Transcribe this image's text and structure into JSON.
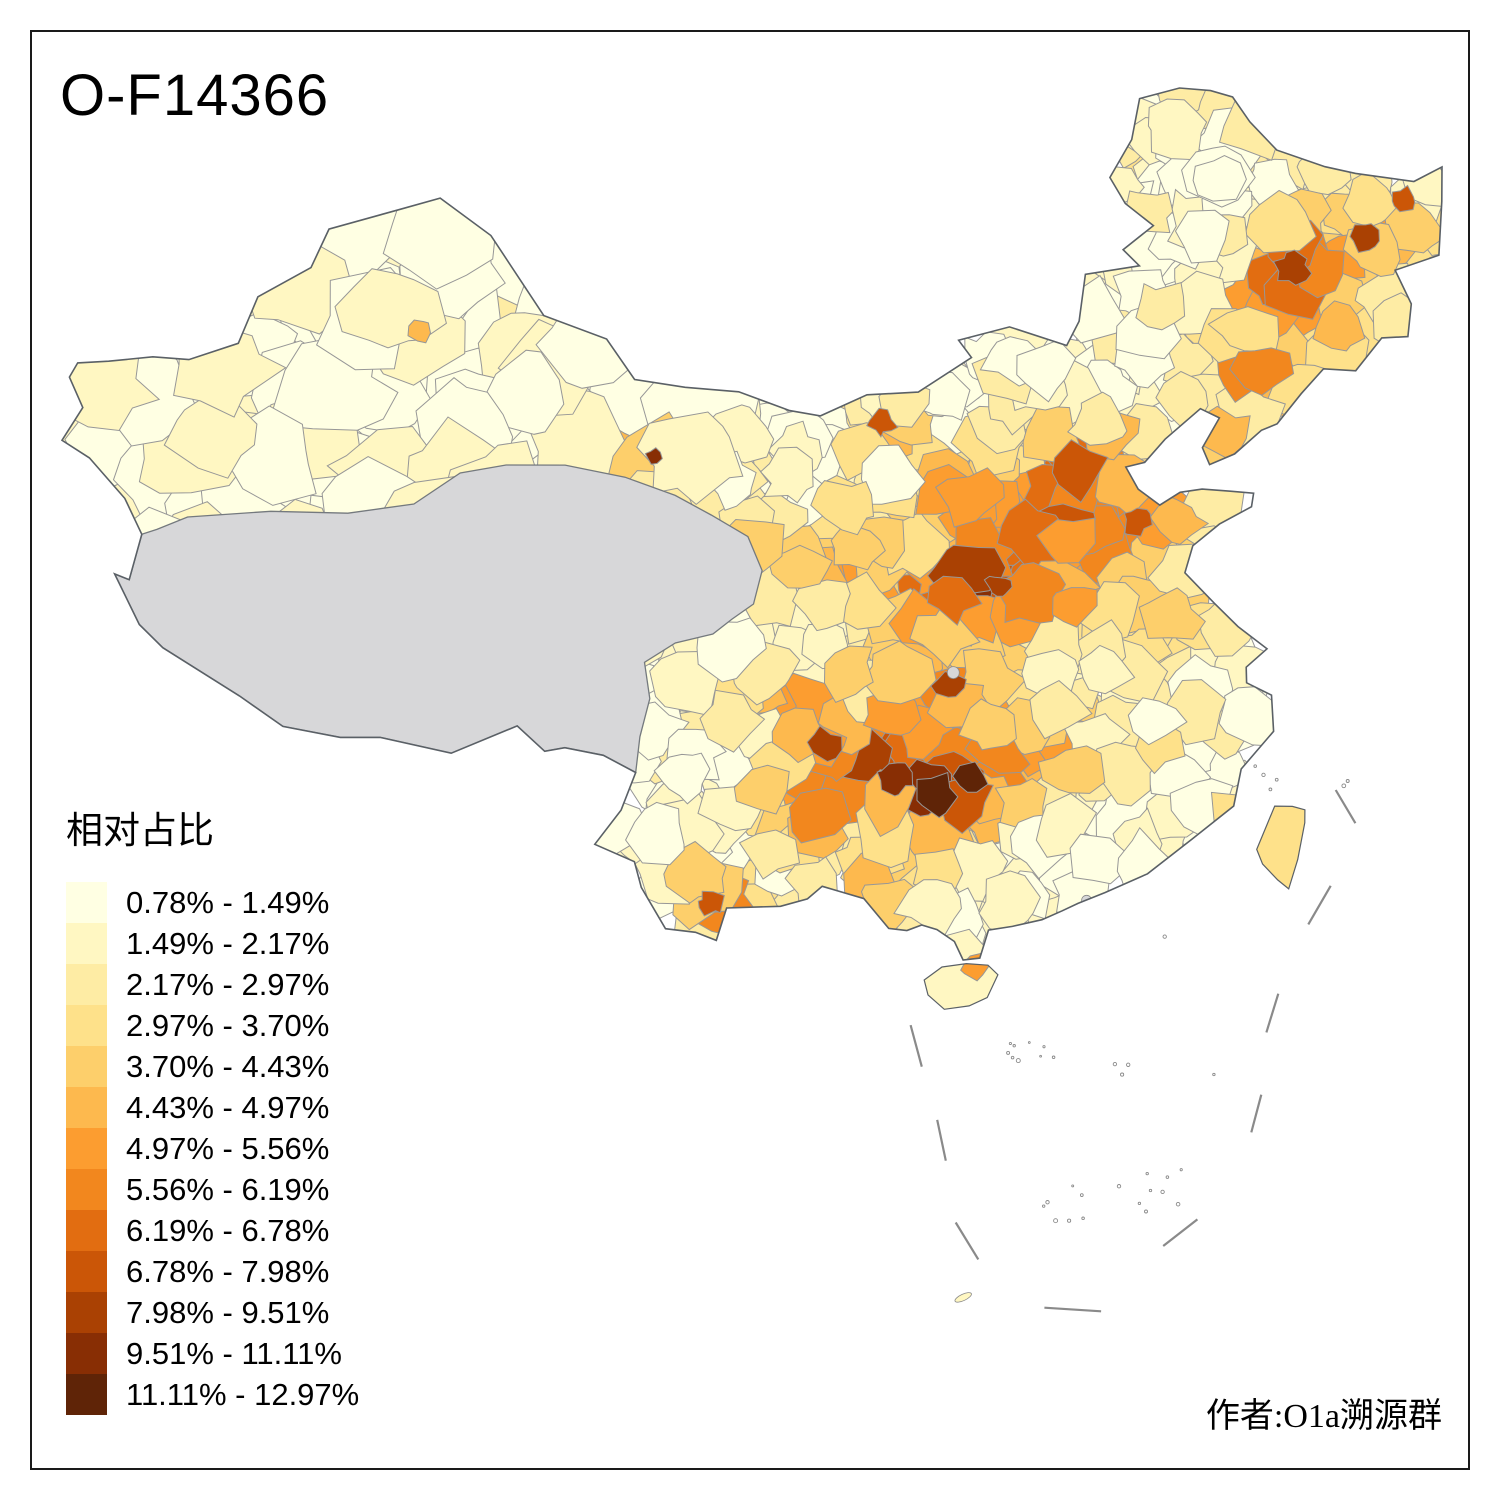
{
  "title": "O-F14366",
  "legend": {
    "title": "相对占比",
    "classes": [
      {
        "label": "0.78% - 1.49%",
        "color": "#FFFFE3"
      },
      {
        "label": "1.49% - 2.17%",
        "color": "#FFF7C2"
      },
      {
        "label": "2.17% - 2.97%",
        "color": "#FEECA4"
      },
      {
        "label": "2.97% - 3.70%",
        "color": "#FEE18A"
      },
      {
        "label": "3.70% - 4.43%",
        "color": "#FDCF6B"
      },
      {
        "label": "4.43% - 4.97%",
        "color": "#FDB94E"
      },
      {
        "label": "4.97% - 5.56%",
        "color": "#FC9D30"
      },
      {
        "label": "5.56% - 6.19%",
        "color": "#F2871E"
      },
      {
        "label": "6.19% - 6.78%",
        "color": "#E26D11"
      },
      {
        "label": "6.78% - 7.98%",
        "color": "#CB5607"
      },
      {
        "label": "7.98% - 9.51%",
        "color": "#AA4103"
      },
      {
        "label": "9.51% - 11.11%",
        "color": "#882E04"
      },
      {
        "label": "11.11% - 12.97%",
        "color": "#5F2407"
      }
    ],
    "no_data_color": "#D7D7D9"
  },
  "attribution": "作者:O1a溯源群",
  "map": {
    "sea_color": "#FFFFFF",
    "cell_border_color": "#979797",
    "boundary_color": "#5A6066",
    "dash_line_color": "#8A8A8A",
    "frame_color": "#1A1A1A"
  }
}
